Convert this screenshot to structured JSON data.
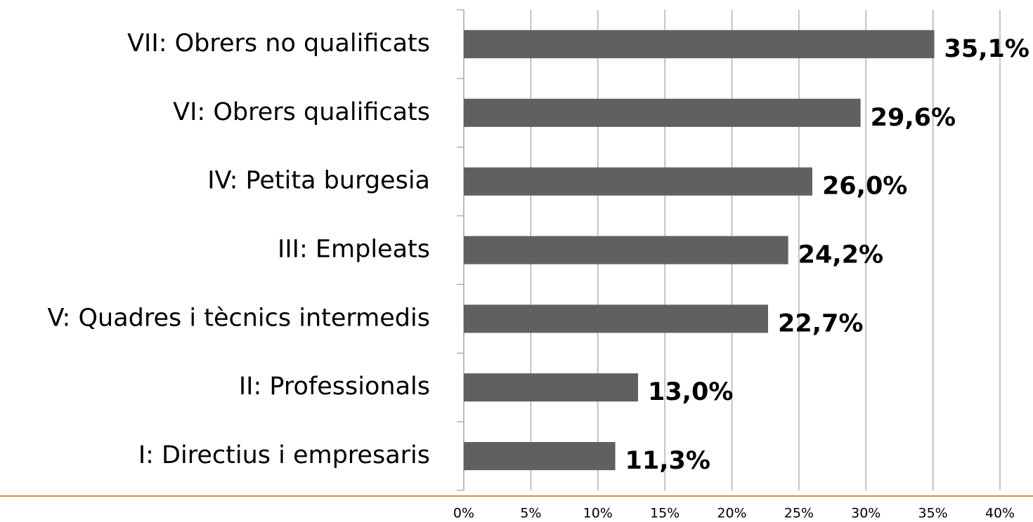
{
  "chart_data": {
    "type": "barh",
    "categories": [
      "VII: Obrers no qualificats",
      "VI: Obrers qualificats",
      "IV: Petita burgesia",
      "III: Empleats",
      "V: Quadres i tècnics intermedis",
      "II: Professionals",
      "I: Directius i empresaris"
    ],
    "values": [
      35.1,
      29.6,
      26.0,
      24.2,
      22.7,
      13.0,
      11.3
    ],
    "value_labels": [
      "35,1%",
      "29,6%",
      "26,0%",
      "24,2%",
      "22,7%",
      "13,0%",
      "11,3%"
    ],
    "color": "#606060",
    "xlim": [
      0,
      40
    ],
    "xticks": [
      {
        "value": 0,
        "label": "0%"
      },
      {
        "value": 5,
        "label": "5%"
      },
      {
        "value": 10,
        "label": "10%"
      },
      {
        "value": 15,
        "label": "15%"
      },
      {
        "value": 20,
        "label": "20%"
      },
      {
        "value": 25,
        "label": "25%"
      },
      {
        "value": 30,
        "label": "30%"
      },
      {
        "value": 35,
        "label": "35%"
      },
      {
        "value": 40,
        "label": "40%"
      }
    ],
    "grid": true
  }
}
